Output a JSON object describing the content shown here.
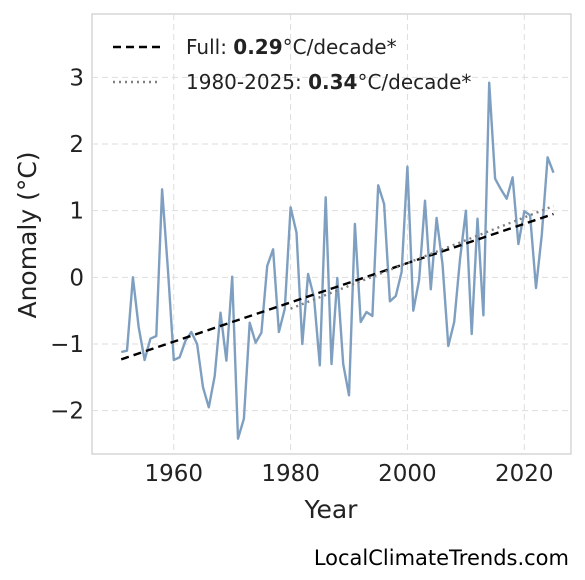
{
  "chart_data": {
    "type": "line",
    "xlabel": "Year",
    "ylabel": "Anomaly (°C)",
    "xlim": [
      1946,
      2028
    ],
    "ylim": [
      -2.65,
      3.95
    ],
    "xticks": [
      1960,
      1980,
      2000,
      2020
    ],
    "yticks": [
      -2,
      -1,
      0,
      1,
      2,
      3
    ],
    "grid": true,
    "legend_position": "top-left",
    "series": [
      {
        "x": [
          1951,
          1952,
          1953,
          1954,
          1955,
          1956,
          1957,
          1958,
          1959,
          1960,
          1961,
          1962,
          1963,
          1964,
          1965,
          1966,
          1967,
          1968,
          1969,
          1970,
          1971,
          1972,
          1973,
          1974,
          1975,
          1976,
          1977,
          1978,
          1979,
          1980,
          1981,
          1982,
          1983,
          1984,
          1985,
          1986,
          1987,
          1988,
          1989,
          1990,
          1991,
          1992,
          1993,
          1994,
          1995,
          1996,
          1997,
          1998,
          1999,
          2000,
          2001,
          2002,
          2003,
          2004,
          2005,
          2006,
          2007,
          2008,
          2009,
          2010,
          2011,
          2012,
          2013,
          2014,
          2015,
          2016,
          2017,
          2018,
          2019,
          2020,
          2021,
          2022,
          2023,
          2024,
          2025
        ],
        "y": [
          -1.12,
          -1.1,
          0.0,
          -0.75,
          -1.24,
          -0.92,
          -0.88,
          1.32,
          0.12,
          -1.24,
          -1.2,
          -0.95,
          -0.82,
          -1.0,
          -1.65,
          -1.95,
          -1.48,
          -0.53,
          -1.25,
          0.01,
          -2.42,
          -2.12,
          -0.68,
          -0.98,
          -0.83,
          0.17,
          0.42,
          -0.82,
          -0.47,
          1.05,
          0.67,
          -1.0,
          0.05,
          -0.3,
          -1.32,
          1.2,
          -1.3,
          -0.01,
          -1.3,
          -1.77,
          0.8,
          -0.67,
          -0.52,
          -0.58,
          1.38,
          1.1,
          -0.36,
          -0.28,
          0.08,
          1.66,
          -0.5,
          -0.04,
          1.15,
          -0.18,
          0.89,
          0.2,
          -1.03,
          -0.67,
          0.27,
          1.0,
          -0.85,
          0.88,
          -0.57,
          2.92,
          1.48,
          1.32,
          1.18,
          1.5,
          0.5,
          0.99,
          0.93,
          -0.16,
          0.64,
          1.8,
          1.57
        ],
        "color": "#7f9fc0"
      }
    ],
    "trend_lines": [
      {
        "label_prefix": "Full: ",
        "value": "0.29",
        "label_suffix": "°C/decade*",
        "x": [
          1951,
          2025
        ],
        "y": [
          -1.23,
          0.95
        ],
        "style": "dashed",
        "color": "#000000"
      },
      {
        "label_prefix": "1980-2025: ",
        "value": "0.34",
        "label_suffix": "°C/decade*",
        "x": [
          1980,
          2025
        ],
        "y": [
          -0.47,
          1.07
        ],
        "style": "dotted",
        "color": "#808080"
      }
    ]
  },
  "source_text": "LocalClimateTrends.com"
}
